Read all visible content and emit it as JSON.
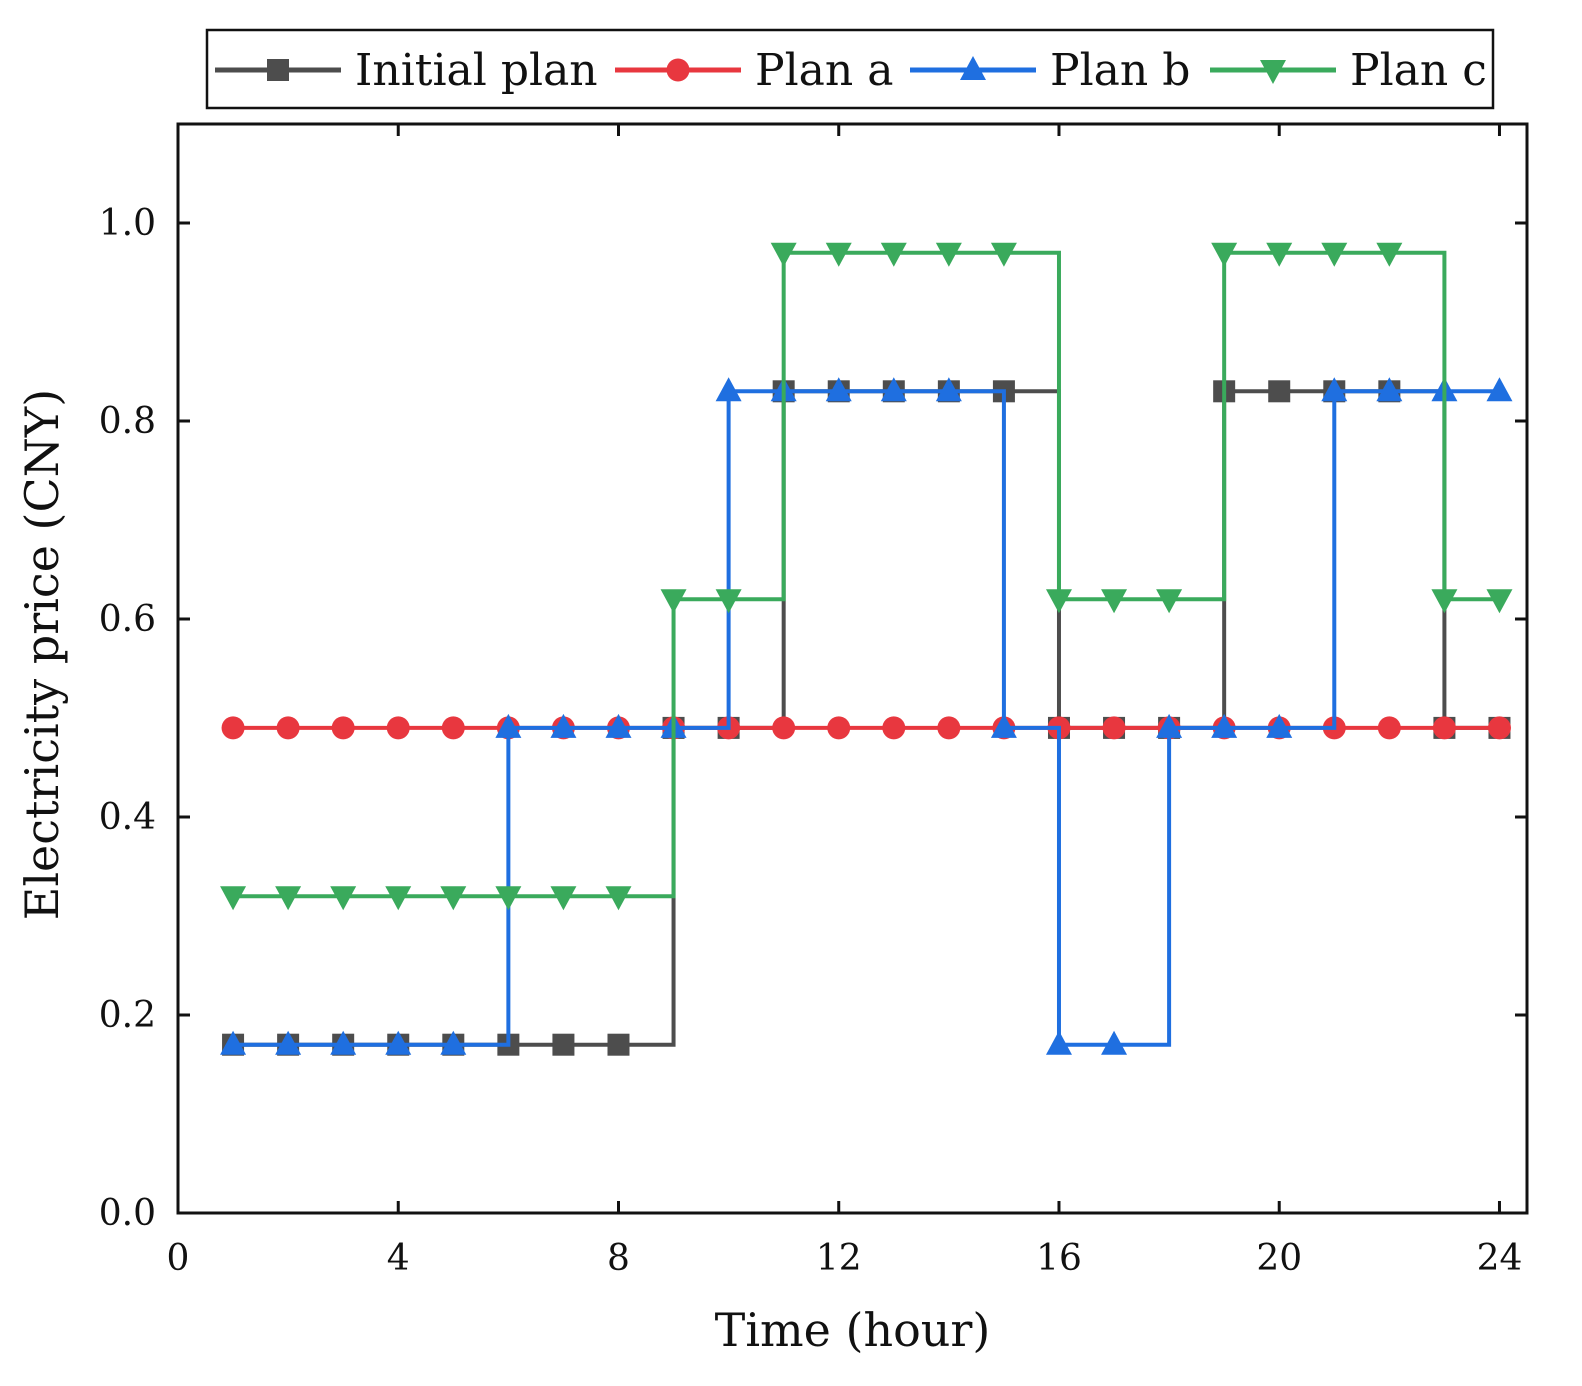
{
  "chart_data": {
    "type": "line",
    "step": "post",
    "xlabel": "Time (hour)",
    "ylabel": "Electricity price (CNY)",
    "xlim": [
      0,
      24.5
    ],
    "ylim": [
      0,
      1.1
    ],
    "xticks": [
      0,
      4,
      8,
      12,
      16,
      20,
      24
    ],
    "xtick_labels": [
      "0",
      "4",
      "8",
      "12",
      "16",
      "20",
      "24"
    ],
    "yticks": [
      0.0,
      0.2,
      0.4,
      0.6,
      0.8,
      1.0
    ],
    "ytick_labels": [
      "0.0",
      "0.2",
      "0.4",
      "0.6",
      "0.8",
      "1.0"
    ],
    "grid": false,
    "legend_position": "top",
    "x": [
      1,
      2,
      3,
      4,
      5,
      6,
      7,
      8,
      9,
      10,
      11,
      12,
      13,
      14,
      15,
      16,
      17,
      18,
      19,
      20,
      21,
      22,
      23,
      24
    ],
    "series": [
      {
        "name": "Initial plan",
        "color": "#4d4d4d",
        "marker": "square",
        "values": [
          0.17,
          0.17,
          0.17,
          0.17,
          0.17,
          0.17,
          0.17,
          0.17,
          0.49,
          0.49,
          0.83,
          0.83,
          0.83,
          0.83,
          0.83,
          0.49,
          0.49,
          0.49,
          0.83,
          0.83,
          0.83,
          0.83,
          0.49,
          0.49
        ]
      },
      {
        "name": "Plan a",
        "color": "#e8373f",
        "marker": "circle",
        "values": [
          0.49,
          0.49,
          0.49,
          0.49,
          0.49,
          0.49,
          0.49,
          0.49,
          0.49,
          0.49,
          0.49,
          0.49,
          0.49,
          0.49,
          0.49,
          0.49,
          0.49,
          0.49,
          0.49,
          0.49,
          0.49,
          0.49,
          0.49,
          0.49
        ]
      },
      {
        "name": "Plan b",
        "color": "#1f6fe0",
        "marker": "triangle-up",
        "values": [
          0.17,
          0.17,
          0.17,
          0.17,
          0.17,
          0.49,
          0.49,
          0.49,
          0.49,
          0.83,
          0.83,
          0.83,
          0.83,
          0.83,
          0.49,
          0.17,
          0.17,
          0.49,
          0.49,
          0.49,
          0.83,
          0.83,
          0.83,
          0.83
        ]
      },
      {
        "name": "Plan c",
        "color": "#3aaa5c",
        "marker": "triangle-down",
        "values": [
          0.32,
          0.32,
          0.32,
          0.32,
          0.32,
          0.32,
          0.32,
          0.32,
          0.62,
          0.62,
          0.97,
          0.97,
          0.97,
          0.97,
          0.97,
          0.62,
          0.62,
          0.62,
          0.97,
          0.97,
          0.97,
          0.97,
          0.62,
          0.62
        ]
      }
    ]
  }
}
